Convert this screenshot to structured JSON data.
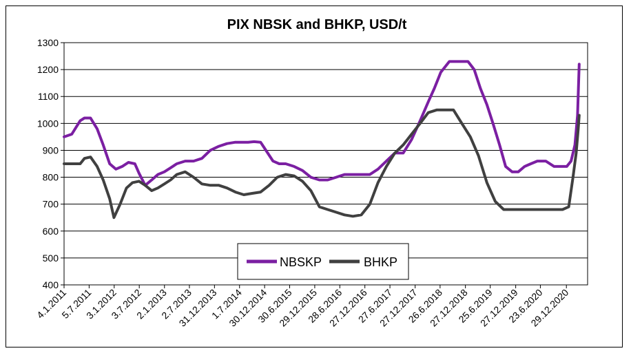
{
  "chart_data": {
    "type": "line",
    "title": "PIX NBSK and BHKP, USD/t",
    "xlabel": "",
    "ylabel": "",
    "ylim": [
      400,
      1300
    ],
    "y_ticks": [
      400,
      500,
      600,
      700,
      800,
      900,
      1000,
      1100,
      1200,
      1300
    ],
    "x_tick_labels": [
      "4.1.2011",
      "5.7.2011",
      "3.1.2012",
      "3.7.2012",
      "2.1.2013",
      "2.7.2013",
      "31.12.2013",
      "1.7.2014",
      "30.12.2014",
      "30.6.2015",
      "29.12.2015",
      "28.6.2016",
      "27.12.2016",
      "27.6.2017",
      "27.12.2017",
      "26.6.2018",
      "27.12.2018",
      "25.6.2019",
      "27.12.2019",
      "23.6.2020",
      "29.12.2020"
    ],
    "grid": true,
    "legend_placement": "bottom-center",
    "series": [
      {
        "name": "NBSKP",
        "color": "#7B1FA2",
        "x_dates": [
          "2011-01-04",
          "2011-03-01",
          "2011-05-01",
          "2011-06-01",
          "2011-07-15",
          "2011-09-01",
          "2011-10-15",
          "2011-12-01",
          "2012-01-15",
          "2012-03-01",
          "2012-04-15",
          "2012-06-01",
          "2012-07-01",
          "2012-08-15",
          "2012-10-01",
          "2012-11-15",
          "2013-01-01",
          "2013-02-15",
          "2013-04-01",
          "2013-06-01",
          "2013-08-01",
          "2013-10-01",
          "2013-12-01",
          "2014-02-01",
          "2014-04-01",
          "2014-06-01",
          "2014-07-15",
          "2014-09-01",
          "2014-10-15",
          "2014-12-01",
          "2015-01-15",
          "2015-03-01",
          "2015-04-15",
          "2015-06-01",
          "2015-08-01",
          "2015-10-01",
          "2015-12-01",
          "2016-02-01",
          "2016-04-01",
          "2016-06-01",
          "2016-08-01",
          "2016-10-01",
          "2016-12-01",
          "2017-02-01",
          "2017-04-01",
          "2017-06-01",
          "2017-08-01",
          "2017-10-01",
          "2017-12-01",
          "2018-02-01",
          "2018-04-01",
          "2018-05-15",
          "2018-07-01",
          "2018-09-01",
          "2018-10-15",
          "2018-12-01",
          "2019-01-15",
          "2019-03-01",
          "2019-04-15",
          "2019-06-01",
          "2019-07-15",
          "2019-09-01",
          "2019-10-15",
          "2019-12-01",
          "2020-01-15",
          "2020-03-01",
          "2020-04-15",
          "2020-06-01",
          "2020-08-01",
          "2020-10-01",
          "2020-11-15",
          "2021-01-01",
          "2021-02-01",
          "2021-03-01",
          "2021-03-20",
          "2021-04-01"
        ],
        "values": [
          950,
          960,
          1010,
          1020,
          1020,
          980,
          920,
          850,
          830,
          840,
          855,
          850,
          815,
          770,
          790,
          810,
          820,
          835,
          850,
          860,
          860,
          870,
          900,
          915,
          925,
          930,
          930,
          930,
          932,
          930,
          895,
          860,
          850,
          850,
          840,
          825,
          800,
          790,
          790,
          800,
          810,
          810,
          810,
          810,
          830,
          860,
          890,
          890,
          940,
          1010,
          1080,
          1130,
          1190,
          1230,
          1230,
          1230,
          1230,
          1200,
          1130,
          1070,
          1000,
          920,
          840,
          820,
          820,
          840,
          850,
          860,
          860,
          840,
          840,
          840,
          860,
          920,
          1030,
          1220
        ]
      },
      {
        "name": "BHKP",
        "color": "#404040",
        "x_dates": [
          "2011-01-04",
          "2011-03-01",
          "2011-05-01",
          "2011-06-01",
          "2011-07-15",
          "2011-09-01",
          "2011-10-15",
          "2011-12-01",
          "2012-01-01",
          "2012-02-15",
          "2012-04-01",
          "2012-05-15",
          "2012-07-01",
          "2012-08-15",
          "2012-10-01",
          "2012-11-15",
          "2013-01-01",
          "2013-02-15",
          "2013-04-01",
          "2013-06-01",
          "2013-08-01",
          "2013-10-01",
          "2013-12-01",
          "2014-02-01",
          "2014-04-01",
          "2014-06-01",
          "2014-08-01",
          "2014-10-01",
          "2014-12-01",
          "2015-02-01",
          "2015-04-01",
          "2015-06-01",
          "2015-08-01",
          "2015-10-01",
          "2015-12-01",
          "2016-02-01",
          "2016-04-01",
          "2016-06-01",
          "2016-08-01",
          "2016-10-01",
          "2016-12-01",
          "2017-02-01",
          "2017-04-01",
          "2017-06-01",
          "2017-08-01",
          "2017-10-01",
          "2017-12-01",
          "2018-02-01",
          "2018-04-01",
          "2018-06-01",
          "2018-08-01",
          "2018-10-01",
          "2018-12-01",
          "2019-02-01",
          "2019-04-01",
          "2019-06-01",
          "2019-08-01",
          "2019-10-01",
          "2019-12-01",
          "2020-02-01",
          "2020-04-01",
          "2020-06-01",
          "2020-08-01",
          "2020-10-01",
          "2020-12-01",
          "2021-01-15",
          "2021-02-15",
          "2021-03-10",
          "2021-03-25",
          "2021-04-01"
        ],
        "values": [
          850,
          850,
          850,
          870,
          875,
          840,
          790,
          720,
          650,
          700,
          760,
          780,
          785,
          770,
          750,
          760,
          775,
          790,
          810,
          820,
          800,
          775,
          770,
          770,
          760,
          745,
          735,
          740,
          745,
          770,
          800,
          810,
          805,
          785,
          750,
          690,
          680,
          670,
          660,
          655,
          660,
          700,
          780,
          840,
          890,
          920,
          960,
          1000,
          1040,
          1050,
          1050,
          1050,
          1000,
          950,
          880,
          780,
          710,
          680,
          680,
          680,
          680,
          680,
          680,
          680,
          680,
          690,
          800,
          890,
          980,
          1030
        ]
      }
    ]
  }
}
